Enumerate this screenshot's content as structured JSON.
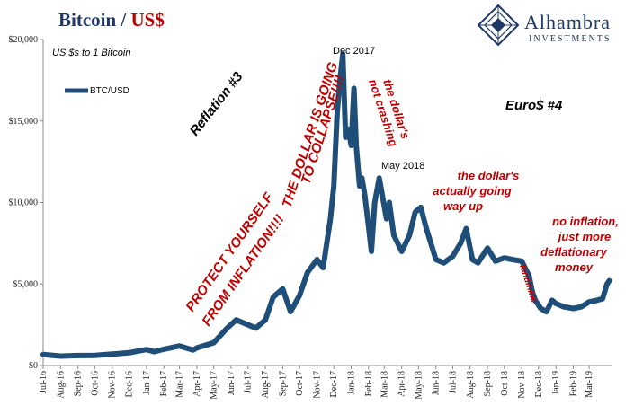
{
  "header": {
    "title_part1": "Bitcoin / ",
    "title_part2": "US$",
    "title_color1": "#1f3864",
    "title_color2": "#c00000"
  },
  "logo": {
    "name": "Alhambra",
    "sub": "INVESTMENTS"
  },
  "chart_data": {
    "type": "line",
    "title": "Bitcoin / US$",
    "subtitle": "US $s to 1 Bitcoin",
    "xlabel": "",
    "ylabel": "",
    "ylim": [
      0,
      20000
    ],
    "yticks": [
      0,
      5000,
      10000,
      15000,
      20000
    ],
    "ytick_labels": [
      "$0",
      "$5,000",
      "$10,000",
      "$15,000",
      "$20,000"
    ],
    "x_start": "2016-07-01",
    "x_end": "2019-04-10",
    "xtick_labels": [
      "Jul-16",
      "Aug-16",
      "Sep-16",
      "Oct-16",
      "Nov-16",
      "Dec-16",
      "Jan-17",
      "Feb-17",
      "Mar-17",
      "Apr-17",
      "May-17",
      "Jun-17",
      "Jul-17",
      "Aug-17",
      "Sep-17",
      "Oct-17",
      "Nov-17",
      "Dec-17",
      "Jan-18",
      "Feb-18",
      "Mar-18",
      "Apr-18",
      "May-18",
      "Jun-18",
      "Jul-18",
      "Aug-18",
      "Sep-18",
      "Oct-18",
      "Nov-18",
      "Dec-18",
      "Jan-19",
      "Feb-19",
      "Mar-19"
    ],
    "legend": "top-left",
    "series": [
      {
        "name": "BTC/USD",
        "color": "#1f4e79",
        "x": [
          "2016-07-01",
          "2016-08-01",
          "2016-09-01",
          "2016-10-01",
          "2016-11-01",
          "2016-12-01",
          "2017-01-01",
          "2017-01-15",
          "2017-02-01",
          "2017-03-01",
          "2017-03-25",
          "2017-04-01",
          "2017-05-01",
          "2017-05-25",
          "2017-06-10",
          "2017-07-15",
          "2017-08-01",
          "2017-08-15",
          "2017-09-01",
          "2017-09-15",
          "2017-10-01",
          "2017-10-15",
          "2017-11-01",
          "2017-11-12",
          "2017-11-25",
          "2017-12-01",
          "2017-12-07",
          "2017-12-12",
          "2017-12-17",
          "2017-12-22",
          "2017-12-27",
          "2018-01-01",
          "2018-01-06",
          "2018-01-10",
          "2018-01-16",
          "2018-01-20",
          "2018-01-25",
          "2018-02-01",
          "2018-02-06",
          "2018-02-12",
          "2018-02-20",
          "2018-03-05",
          "2018-03-10",
          "2018-03-18",
          "2018-04-01",
          "2018-04-15",
          "2018-04-25",
          "2018-05-05",
          "2018-05-15",
          "2018-06-01",
          "2018-06-15",
          "2018-07-01",
          "2018-07-15",
          "2018-07-25",
          "2018-08-05",
          "2018-08-15",
          "2018-09-01",
          "2018-09-15",
          "2018-10-01",
          "2018-10-15",
          "2018-11-01",
          "2018-11-14",
          "2018-11-20",
          "2018-11-25",
          "2018-12-05",
          "2018-12-15",
          "2018-12-25",
          "2019-01-01",
          "2019-01-15",
          "2019-02-01",
          "2019-02-15",
          "2019-03-01",
          "2019-03-15",
          "2019-03-25",
          "2019-04-02",
          "2019-04-06"
        ],
        "values": [
          670,
          580,
          610,
          620,
          700,
          780,
          980,
          850,
          1000,
          1200,
          950,
          1080,
          1400,
          2300,
          2800,
          2300,
          2800,
          4200,
          4700,
          3300,
          4300,
          5700,
          6500,
          6000,
          9000,
          11000,
          15500,
          17500,
          19100,
          14000,
          14500,
          13500,
          17000,
          13500,
          11000,
          11500,
          10500,
          8500,
          7000,
          10000,
          11500,
          9000,
          10000,
          8000,
          7000,
          8000,
          9400,
          9700,
          8400,
          6500,
          6300,
          6700,
          7500,
          8400,
          6500,
          6300,
          7200,
          6400,
          6600,
          6500,
          6400,
          5500,
          4500,
          4000,
          3500,
          3300,
          4000,
          3800,
          3600,
          3500,
          3600,
          3900,
          4000,
          4100,
          5000,
          5200
        ]
      }
    ],
    "annotations": [
      {
        "text": "Reflation #3",
        "color": "#000000"
      },
      {
        "text": "Euro$ #4",
        "color": "#000000"
      },
      {
        "text": "Dec 2017",
        "color": "#000000"
      },
      {
        "text": "May 2018",
        "color": "#000000"
      },
      {
        "text": "PROTECT YOURSELF",
        "color": "#c00000"
      },
      {
        "text": "FROM INFLATION!!!!",
        "color": "#c00000"
      },
      {
        "text": "THE DOLLAR IS GOING",
        "color": "#c00000"
      },
      {
        "text": "TO COLLAPSE!!!!",
        "color": "#c00000"
      },
      {
        "text": "the dollar's",
        "color": "#c00000"
      },
      {
        "text": "not crashing",
        "color": "#c00000"
      },
      {
        "text": "the dollar's",
        "color": "#c00000"
      },
      {
        "text": "actually going",
        "color": "#c00000"
      },
      {
        "text": "way up",
        "color": "#c00000"
      },
      {
        "text": "no inflation,",
        "color": "#c00000"
      },
      {
        "text": "just more",
        "color": "#c00000"
      },
      {
        "text": "deflationary",
        "color": "#c00000"
      },
      {
        "text": "money",
        "color": "#c00000"
      },
      {
        "text": "landmine",
        "color": "#c00000"
      }
    ]
  }
}
